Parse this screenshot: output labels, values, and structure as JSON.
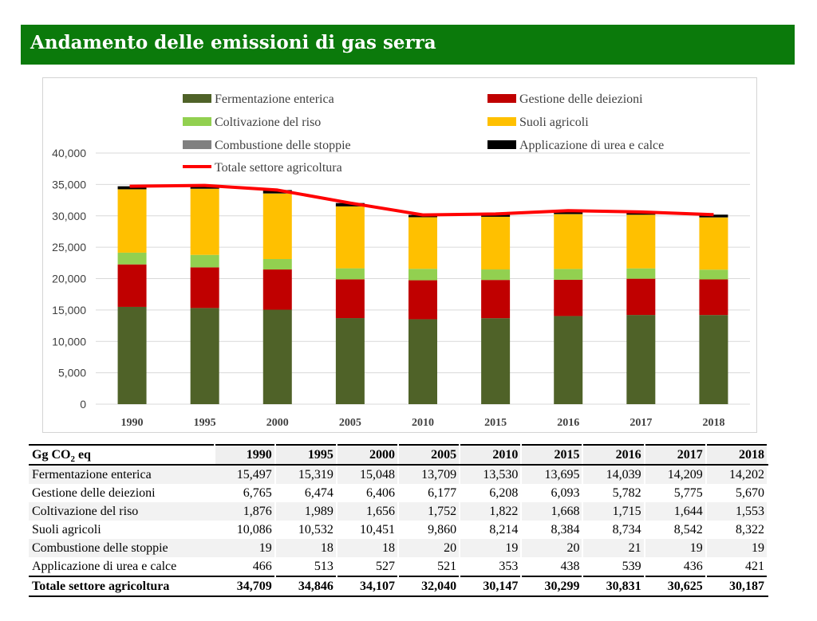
{
  "header": {
    "title": "Andamento delle emissioni di gas serra"
  },
  "chart_data": {
    "type": "bar",
    "stacked": true,
    "categories": [
      "1990",
      "1995",
      "2000",
      "2005",
      "2010",
      "2015",
      "2016",
      "2017",
      "2018"
    ],
    "ylim": [
      0,
      40000
    ],
    "yticks": [
      "0",
      "5,000",
      "10,000",
      "15,000",
      "20,000",
      "25,000",
      "30,000",
      "35,000",
      "40,000"
    ],
    "grid": true,
    "legend_position": "top",
    "series": [
      {
        "name": "Fermentazione enterica",
        "color": "#4f6228",
        "values": [
          15497,
          15319,
          15048,
          13709,
          13530,
          13695,
          14039,
          14209,
          14202
        ]
      },
      {
        "name": "Gestione delle deiezioni",
        "color": "#c00000",
        "values": [
          6765,
          6474,
          6406,
          6177,
          6208,
          6093,
          5782,
          5775,
          5670
        ]
      },
      {
        "name": "Coltivazione del riso",
        "color": "#92d050",
        "values": [
          1876,
          1989,
          1656,
          1752,
          1822,
          1668,
          1715,
          1644,
          1553
        ]
      },
      {
        "name": "Suoli agricoli",
        "color": "#ffc000",
        "values": [
          10086,
          10532,
          10451,
          9860,
          8214,
          8384,
          8734,
          8542,
          8322
        ]
      },
      {
        "name": "Combustione delle stoppie",
        "color": "#808080",
        "values": [
          19,
          18,
          18,
          20,
          19,
          20,
          21,
          19,
          19
        ]
      },
      {
        "name": "Applicazione di urea e calce",
        "color": "#000000",
        "values": [
          466,
          513,
          527,
          521,
          353,
          438,
          539,
          436,
          421
        ]
      }
    ],
    "line": {
      "name": "Totale settore agricoltura",
      "color": "#ff0000",
      "values": [
        34709,
        34846,
        34107,
        32040,
        30147,
        30299,
        30831,
        30625,
        30187
      ]
    }
  },
  "table": {
    "header_label": "Gg CO",
    "header_sub": "2",
    "header_suffix": " eq",
    "years": [
      "1990",
      "1995",
      "2000",
      "2005",
      "2010",
      "2015",
      "2016",
      "2017",
      "2018"
    ],
    "rows": [
      {
        "label": "Fermentazione enterica",
        "values": [
          "15,497",
          "15,319",
          "15,048",
          "13,709",
          "13,530",
          "13,695",
          "14,039",
          "14,209",
          "14,202"
        ]
      },
      {
        "label": "Gestione delle deiezioni",
        "values": [
          "6,765",
          "6,474",
          "6,406",
          "6,177",
          "6,208",
          "6,093",
          "5,782",
          "5,775",
          "5,670"
        ]
      },
      {
        "label": "Coltivazione del riso",
        "values": [
          "1,876",
          "1,989",
          "1,656",
          "1,752",
          "1,822",
          "1,668",
          "1,715",
          "1,644",
          "1,553"
        ]
      },
      {
        "label": "Suoli agricoli",
        "values": [
          "10,086",
          "10,532",
          "10,451",
          "9,860",
          "8,214",
          "8,384",
          "8,734",
          "8,542",
          "8,322"
        ]
      },
      {
        "label": "Combustione delle stoppie",
        "values": [
          "19",
          "18",
          "18",
          "20",
          "19",
          "20",
          "21",
          "19",
          "19"
        ]
      },
      {
        "label": "Applicazione di urea e calce",
        "values": [
          "466",
          "513",
          "527",
          "521",
          "353",
          "438",
          "539",
          "436",
          "421"
        ]
      }
    ],
    "total": {
      "label": "Totale settore agricoltura",
      "values": [
        "34,709",
        "34,846",
        "34,107",
        "32,040",
        "30,147",
        "30,299",
        "30,831",
        "30,625",
        "30,187"
      ]
    }
  }
}
